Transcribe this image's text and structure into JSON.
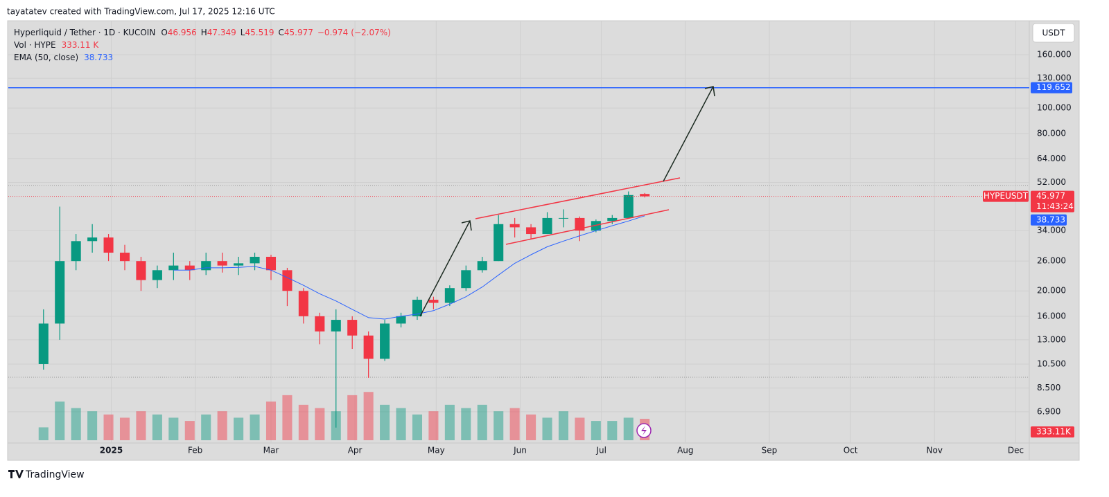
{
  "header": {
    "attribution": "tayatatev created with TradingView.com, Jul 17, 2025 12:16 UTC",
    "footer": "TradingView"
  },
  "chart_data": {
    "type": "candlestick",
    "title": "Hyperliquid / Tether · 1D · KUCOIN",
    "ohlc_letters": [
      "O",
      "H",
      "L",
      "C"
    ],
    "ohlc_legend": {
      "open": 46.956,
      "high": 47.349,
      "low": 45.519,
      "close": 45.977,
      "change": {
        "value": -0.974,
        "label": "−0.974"
      },
      "change_pct": {
        "value": -2.07,
        "label": "(−2.07%)"
      }
    },
    "volume_name": "Vol · HYPE",
    "volume_last": 333.11,
    "volume_last_label": "333.11 K",
    "volume_tag_label": "333.11K",
    "ema_name": "EMA (50, close)",
    "ema_last": 38.733,
    "currency": "USDT",
    "symbol": "HYPEUSDT",
    "countdown": "11:43:24",
    "target": 119.652,
    "target_color": "#2962ff",
    "up_color": "#089981",
    "down_color": "#f23645",
    "ema_color": "#2962ff",
    "x": [
      -25,
      -19,
      -13,
      -7,
      -1,
      5,
      11,
      17,
      23,
      29,
      35,
      41,
      47,
      53,
      59,
      65,
      71,
      77,
      83,
      89,
      95,
      101,
      107,
      113,
      119,
      125,
      131,
      137,
      143,
      149,
      155,
      161,
      167,
      173,
      179,
      185,
      191,
      197
    ],
    "open": [
      10.5,
      15,
      26,
      31,
      32,
      28,
      26,
      22,
      24,
      25,
      24,
      26,
      25,
      25.5,
      27,
      24,
      20,
      16,
      14,
      15.5,
      13.5,
      11,
      15,
      16,
      18.5,
      18,
      20.5,
      24,
      26,
      36,
      35,
      33,
      38,
      38,
      34,
      37,
      38,
      46.956
    ],
    "high": [
      17,
      42,
      33,
      36,
      33,
      30,
      27,
      25,
      28,
      26,
      28,
      28,
      27,
      28,
      27.5,
      24.5,
      20.5,
      16.5,
      17,
      16,
      14,
      15.5,
      16.5,
      19,
      19,
      21,
      25,
      27,
      39,
      38,
      36,
      40,
      41,
      38.5,
      37.5,
      39,
      48,
      47.349
    ],
    "low": [
      10,
      13,
      24,
      28,
      26,
      24,
      20,
      20.5,
      22,
      22,
      23,
      23.5,
      23,
      24,
      22,
      17.5,
      15,
      12.5,
      6,
      12,
      9.3,
      10.8,
      14.5,
      15.5,
      17,
      17.5,
      20,
      23.5,
      26,
      32,
      31.5,
      33,
      35,
      31,
      33.5,
      36,
      38,
      45.519
    ],
    "close": [
      15,
      26,
      31,
      32,
      28,
      26,
      22,
      24,
      25,
      24,
      26,
      25,
      25.5,
      27,
      24,
      20,
      16,
      14,
      15.5,
      13.5,
      11,
      15,
      16,
      18.5,
      18,
      20.5,
      24,
      26,
      36,
      35,
      33,
      38,
      38,
      34,
      37,
      38,
      46.5,
      45.977
    ],
    "volume": [
      200,
      600,
      500,
      450,
      400,
      350,
      450,
      400,
      350,
      300,
      400,
      450,
      350,
      400,
      600,
      700,
      550,
      500,
      450,
      700,
      750,
      550,
      500,
      400,
      450,
      550,
      500,
      550,
      450,
      500,
      400,
      350,
      450,
      350,
      300,
      300,
      350,
      333.11
    ],
    "ema": [
      null,
      null,
      null,
      null,
      null,
      null,
      null,
      null,
      24,
      24,
      24.5,
      24.5,
      24.6,
      24.8,
      24,
      22.5,
      21,
      19.5,
      18.3,
      17,
      15.8,
      15.6,
      16,
      16.3,
      16.8,
      17.8,
      19,
      20.7,
      23,
      25.5,
      27.5,
      29.5,
      31,
      32.5,
      34,
      35.5,
      37,
      38.733
    ],
    "xlim": [
      -38,
      339
    ],
    "xticks": [
      {
        "value": 0,
        "label": "2025"
      },
      {
        "value": 31,
        "label": "Feb"
      },
      {
        "value": 59,
        "label": "Mar"
      },
      {
        "value": 90,
        "label": "Apr"
      },
      {
        "value": 120,
        "label": "May"
      },
      {
        "value": 151,
        "label": "Jun"
      },
      {
        "value": 181,
        "label": "Jul"
      },
      {
        "value": 212,
        "label": "Aug"
      },
      {
        "value": 243,
        "label": "Sep"
      },
      {
        "value": 273,
        "label": "Oct"
      },
      {
        "value": 304,
        "label": "Nov"
      },
      {
        "value": 334,
        "label": "Dec"
      }
    ],
    "ylim": [
      5.37,
      215.7
    ],
    "log_scale": true,
    "yticks": [
      {
        "value": 160,
        "label": "160.000"
      },
      {
        "value": 130,
        "label": "130.000"
      },
      {
        "value": 100,
        "label": "100.000"
      },
      {
        "value": 80,
        "label": "80.000"
      },
      {
        "value": 64,
        "label": "64.000"
      },
      {
        "value": 52,
        "label": "52.000"
      },
      {
        "value": 34,
        "label": "34.000"
      },
      {
        "value": 26,
        "label": "26.000"
      },
      {
        "value": 20,
        "label": "20.000"
      },
      {
        "value": 16,
        "label": "16.000"
      },
      {
        "value": 13,
        "label": "13.000"
      },
      {
        "value": 10.5,
        "label": "10.500"
      },
      {
        "value": 8.5,
        "label": "8.500"
      },
      {
        "value": 6.9,
        "label": "6.900"
      }
    ],
    "volume_ylim": [
      0,
      1075
    ],
    "grid": true
  }
}
